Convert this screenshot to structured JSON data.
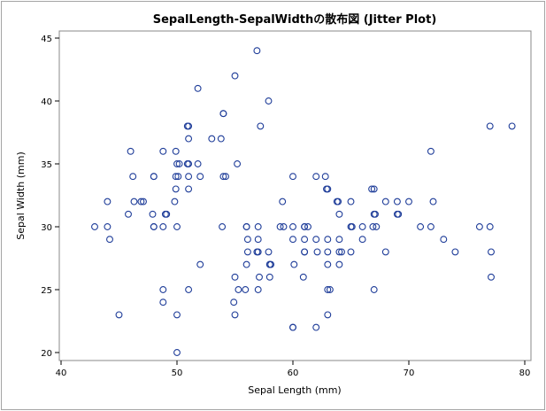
{
  "chart_data": {
    "type": "scatter",
    "title": "SepalLength-SepalWidthの散布図 (Jitter Plot)",
    "xlabel": "Sepal Length (mm)",
    "ylabel": "Sepal Width (mm)",
    "xlim": [
      40,
      80
    ],
    "ylim": [
      20,
      45
    ],
    "xticks": [
      40,
      50,
      60,
      70,
      80
    ],
    "yticks": [
      20,
      25,
      30,
      35,
      40,
      45
    ],
    "grid": false,
    "marker": "open-circle",
    "marker_color": "#1f3d99",
    "points": [
      [
        42.9,
        30
      ],
      [
        44,
        32
      ],
      [
        44,
        30
      ],
      [
        44.2,
        29
      ],
      [
        45,
        23
      ],
      [
        45.8,
        31
      ],
      [
        46,
        36
      ],
      [
        46.2,
        34
      ],
      [
        46.3,
        32
      ],
      [
        46.9,
        32
      ],
      [
        47.1,
        32
      ],
      [
        47.9,
        31
      ],
      [
        48,
        34
      ],
      [
        48,
        34
      ],
      [
        48,
        30
      ],
      [
        48,
        30
      ],
      [
        48.8,
        25
      ],
      [
        48.8,
        24
      ],
      [
        48.8,
        30
      ],
      [
        48.8,
        36
      ],
      [
        49,
        31
      ],
      [
        49.1,
        31
      ],
      [
        49.9,
        36
      ],
      [
        49.9,
        34
      ],
      [
        49.9,
        33
      ],
      [
        49.8,
        32
      ],
      [
        50,
        35
      ],
      [
        50.1,
        34
      ],
      [
        50.2,
        35
      ],
      [
        50,
        30
      ],
      [
        50,
        23
      ],
      [
        50,
        20
      ],
      [
        50.9,
        38
      ],
      [
        51,
        38
      ],
      [
        50.9,
        35
      ],
      [
        51,
        35
      ],
      [
        51,
        34
      ],
      [
        51,
        33
      ],
      [
        51,
        37
      ],
      [
        51,
        25
      ],
      [
        51.8,
        41
      ],
      [
        51.8,
        35
      ],
      [
        52,
        34
      ],
      [
        52,
        27
      ],
      [
        53,
        37
      ],
      [
        53.8,
        37
      ],
      [
        54,
        39
      ],
      [
        54,
        39
      ],
      [
        54,
        34
      ],
      [
        54.2,
        34
      ],
      [
        53.9,
        30
      ],
      [
        55,
        42
      ],
      [
        54.9,
        24
      ],
      [
        55,
        23
      ],
      [
        55,
        26
      ],
      [
        55.2,
        35
      ],
      [
        55.3,
        25
      ],
      [
        55.9,
        25
      ],
      [
        56,
        27
      ],
      [
        56.1,
        29
      ],
      [
        56,
        30
      ],
      [
        56,
        30
      ],
      [
        56.1,
        28
      ],
      [
        56.9,
        44
      ],
      [
        57,
        30
      ],
      [
        57,
        29
      ],
      [
        56.9,
        28
      ],
      [
        57,
        28
      ],
      [
        57,
        25
      ],
      [
        57.1,
        26
      ],
      [
        57.2,
        38
      ],
      [
        57.9,
        40
      ],
      [
        57.9,
        28
      ],
      [
        58,
        27
      ],
      [
        58,
        27
      ],
      [
        58.1,
        27
      ],
      [
        58,
        26
      ],
      [
        58.9,
        30
      ],
      [
        59.2,
        30
      ],
      [
        59.1,
        32
      ],
      [
        60,
        34
      ],
      [
        60,
        30
      ],
      [
        60,
        29
      ],
      [
        60.1,
        27
      ],
      [
        60,
        22
      ],
      [
        60,
        22
      ],
      [
        61,
        30
      ],
      [
        61,
        30
      ],
      [
        61,
        29
      ],
      [
        61,
        28
      ],
      [
        61,
        28
      ],
      [
        60.9,
        26
      ],
      [
        61.3,
        30
      ],
      [
        62,
        34
      ],
      [
        62,
        29
      ],
      [
        62,
        22
      ],
      [
        62.1,
        28
      ],
      [
        62.8,
        34
      ],
      [
        63,
        33
      ],
      [
        62.9,
        33
      ],
      [
        63,
        29
      ],
      [
        63,
        28
      ],
      [
        63,
        27
      ],
      [
        63,
        25
      ],
      [
        63.2,
        25
      ],
      [
        63,
        23
      ],
      [
        63.8,
        32
      ],
      [
        63.9,
        32
      ],
      [
        64,
        29
      ],
      [
        64,
        28
      ],
      [
        64.2,
        28
      ],
      [
        64,
        27
      ],
      [
        64,
        31
      ],
      [
        65,
        32
      ],
      [
        65,
        30
      ],
      [
        65.1,
        30
      ],
      [
        65,
        28
      ],
      [
        66,
        29
      ],
      [
        66,
        30
      ],
      [
        66.8,
        33
      ],
      [
        67,
        31
      ],
      [
        67.1,
        31
      ],
      [
        66.9,
        30
      ],
      [
        67.2,
        30
      ],
      [
        67,
        33
      ],
      [
        67,
        25
      ],
      [
        68,
        32
      ],
      [
        68,
        28
      ],
      [
        69,
        32
      ],
      [
        69,
        31
      ],
      [
        69.1,
        31
      ],
      [
        70,
        32
      ],
      [
        71,
        30
      ],
      [
        71.9,
        36
      ],
      [
        71.9,
        30
      ],
      [
        72.1,
        32
      ],
      [
        73,
        29
      ],
      [
        74,
        28
      ],
      [
        76.1,
        30
      ],
      [
        77,
        38
      ],
      [
        77,
        30
      ],
      [
        77.1,
        28
      ],
      [
        77.1,
        26
      ],
      [
        78.9,
        38
      ]
    ]
  }
}
